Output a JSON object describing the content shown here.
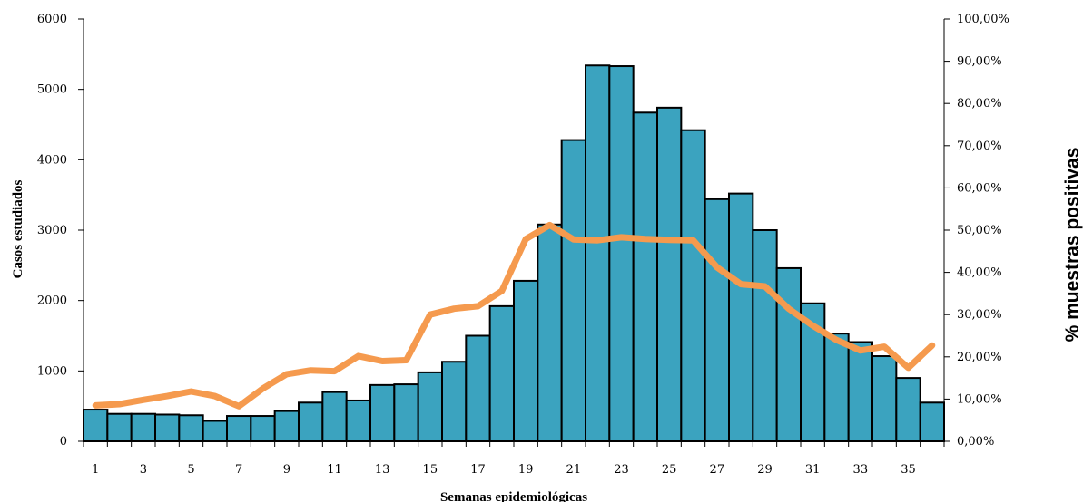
{
  "chart_data": {
    "type": "bar",
    "title": "",
    "xlabel": "Semanas epidemiológicas",
    "ylabel": "Casos estudiados",
    "y2label": "% muestras positivas",
    "ylim": [
      0,
      6000
    ],
    "y2lim": [
      0,
      100
    ],
    "yticks": [
      "0",
      "1000",
      "2000",
      "3000",
      "4000",
      "5000",
      "6000"
    ],
    "y2ticks": [
      "0,00%",
      "10,00%",
      "20,00%",
      "30,00%",
      "40,00%",
      "50,00%",
      "60,00%",
      "70,00%",
      "80,00%",
      "90,00%",
      "100,00%"
    ],
    "xtick_labels": [
      "1",
      "3",
      "5",
      "7",
      "9",
      "11",
      "13",
      "15",
      "17",
      "19",
      "21",
      "23",
      "25",
      "27",
      "29",
      "31",
      "33",
      "35"
    ],
    "categories": [
      1,
      2,
      3,
      4,
      5,
      6,
      7,
      8,
      9,
      10,
      11,
      12,
      13,
      14,
      15,
      16,
      17,
      18,
      19,
      20,
      21,
      22,
      23,
      24,
      25,
      26,
      27,
      28,
      29,
      30,
      31,
      32,
      33,
      34,
      35,
      36
    ],
    "grid": false,
    "legend": "none",
    "colors": {
      "bars": "#3ba3bf",
      "bar_edge": "#000000",
      "line": "#f59a4e"
    },
    "series": [
      {
        "type": "bar",
        "axis": "left",
        "values": [
          450,
          390,
          390,
          380,
          370,
          290,
          360,
          360,
          430,
          550,
          700,
          580,
          800,
          810,
          980,
          1130,
          1500,
          1920,
          2280,
          3080,
          4280,
          5340,
          5330,
          4670,
          4740,
          4420,
          3440,
          3520,
          3000,
          2460,
          1960,
          1530,
          1410,
          1210,
          900,
          550
        ]
      },
      {
        "type": "line",
        "axis": "right",
        "values": [
          8.5,
          8.8,
          9.8,
          10.7,
          11.8,
          10.7,
          8.3,
          12.5,
          15.9,
          16.8,
          16.6,
          20.2,
          19.0,
          19.2,
          30.0,
          31.4,
          32.0,
          35.6,
          47.9,
          51.2,
          47.8,
          47.6,
          48.3,
          47.9,
          47.7,
          47.6,
          41.2,
          37.2,
          36.7,
          31.4,
          27.4,
          24.0,
          21.5,
          22.4,
          17.4,
          22.7
        ]
      }
    ]
  }
}
